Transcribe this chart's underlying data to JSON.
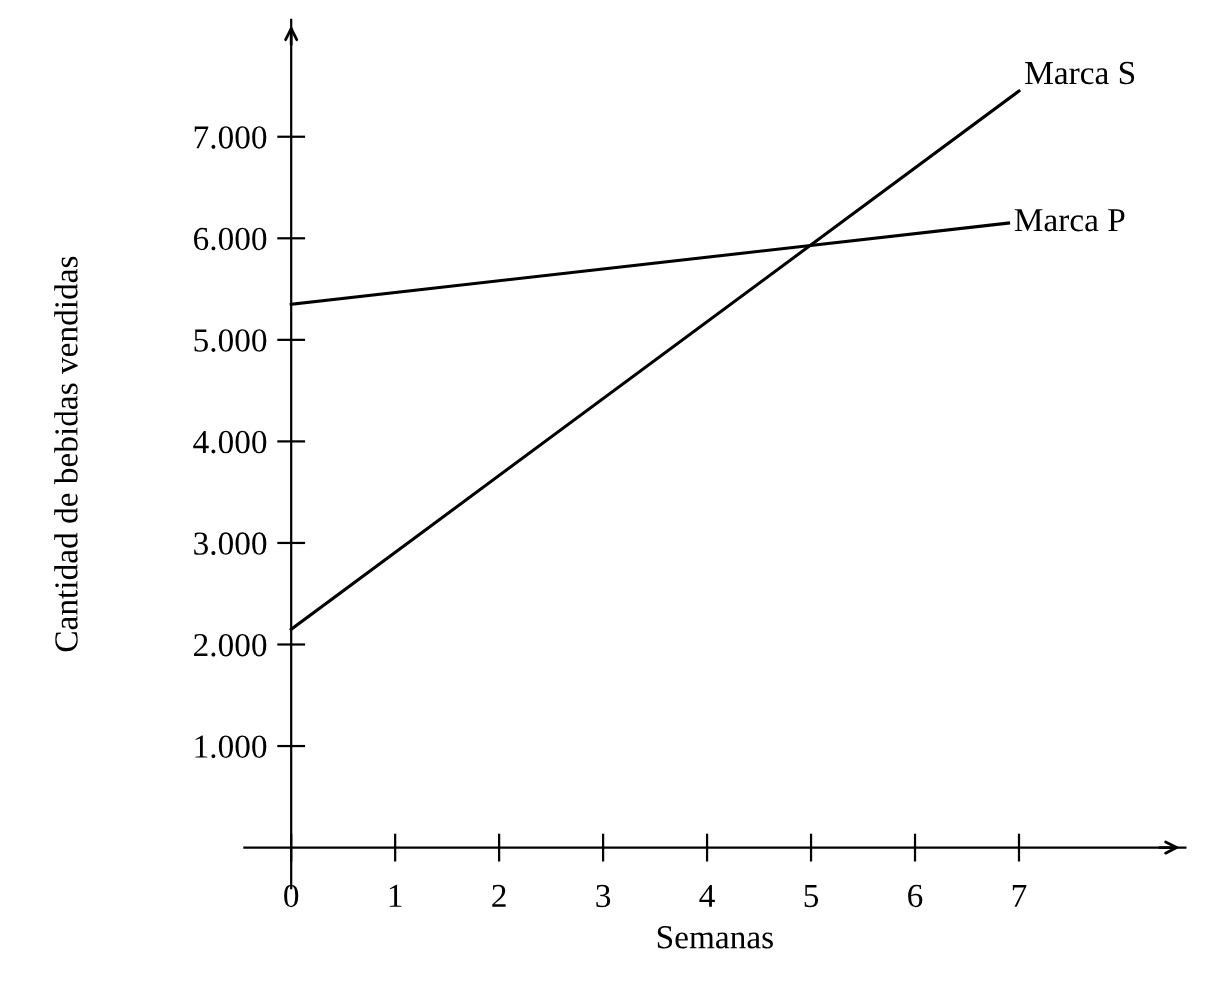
{
  "chart_data": {
    "type": "line",
    "xlabel": "Semanas",
    "ylabel": "Cantidad de bebidas vendidas",
    "xlim": [
      -0.45,
      8.6
    ],
    "ylim": [
      -400,
      8150
    ],
    "xticks": [
      {
        "value": 0,
        "label": "0"
      },
      1,
      2,
      3,
      4,
      5,
      6,
      7
    ],
    "yticks": [
      {
        "value": 1000,
        "label": "1.000"
      },
      {
        "value": 2000,
        "label": "2.000"
      },
      {
        "value": 3000,
        "label": "3.000"
      },
      {
        "value": 4000,
        "label": "4.000"
      },
      {
        "value": 5000,
        "label": "5.000"
      },
      {
        "value": 6000,
        "label": "6.000"
      },
      {
        "value": 7000,
        "label": "7.000"
      }
    ],
    "series": [
      {
        "name": "Marca S",
        "color": "#000000",
        "x": [
          0,
          7
        ],
        "values": [
          2150,
          7450
        ]
      },
      {
        "name": "Marca P",
        "color": "#000000",
        "x": [
          0,
          6.9
        ],
        "values": [
          5350,
          6150
        ]
      }
    ],
    "grid": false,
    "legend": false,
    "marker": "none",
    "line_style": "solid"
  }
}
